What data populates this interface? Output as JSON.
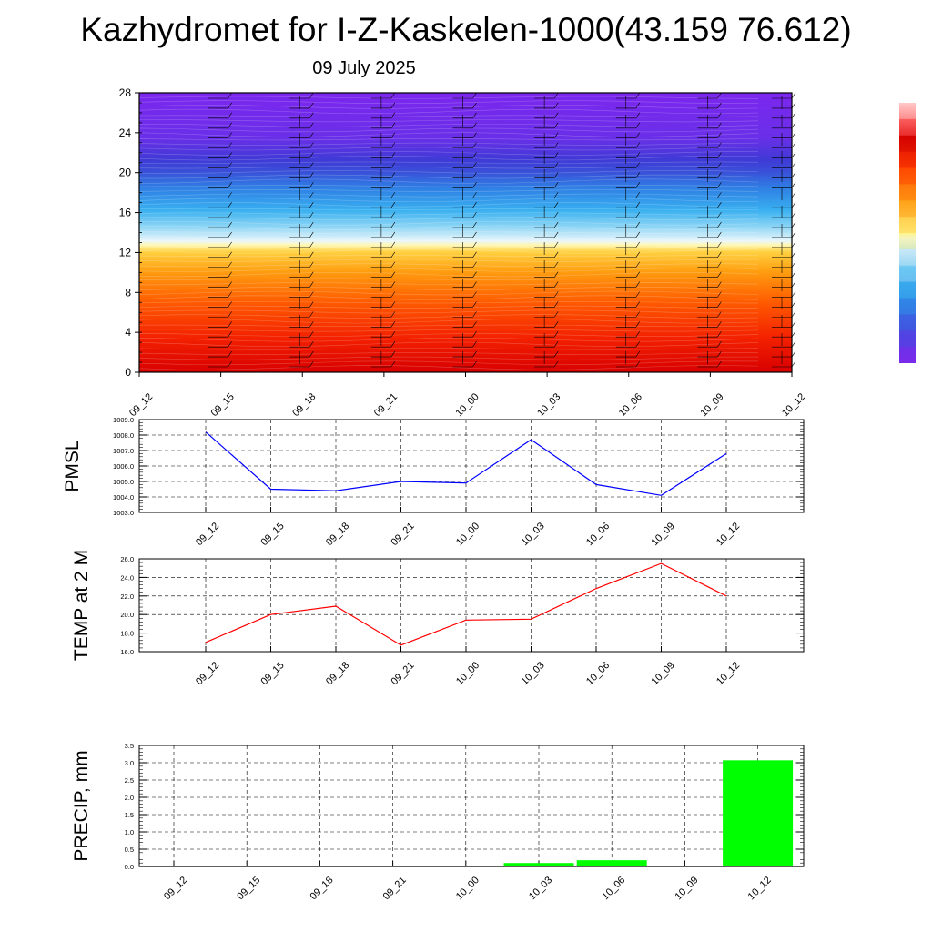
{
  "header": {
    "title": "Kazhydromet for I-Z-Kaskelen-1000(43.159 76.612)",
    "date": "09 July 2025"
  },
  "time_labels": [
    "09_12",
    "09_15",
    "09_18",
    "09_21",
    "10_00",
    "10_03",
    "10_06",
    "10_09",
    "10_12"
  ],
  "colors": {
    "pmsl_line": "#0000ff",
    "temp_line": "#ff0000",
    "precip_bar": "#00ff00",
    "grid": "#000000"
  },
  "chart_data": [
    {
      "id": "cross-section",
      "type": "heatmap",
      "y_ticks": [
        "0",
        "4",
        "8",
        "12",
        "16",
        "20",
        "24",
        "28"
      ],
      "ylim": [
        0,
        28
      ],
      "x": [
        "09_12",
        "09_15",
        "09_18",
        "09_21",
        "10_00",
        "10_03",
        "10_06",
        "10_09",
        "10_12"
      ],
      "overlay": "wind barbs",
      "colorbar": [
        "#7b2aeb",
        "#5a3fe6",
        "#3b5be0",
        "#2f87e6",
        "#3cb4f0",
        "#9ad9f5",
        "#e8f4f8",
        "#fff48a",
        "#ffd24a",
        "#ffa41a",
        "#ff7a0a",
        "#ff4a00",
        "#f01a00",
        "#d40000",
        "#ff6060",
        "#ffc0c0"
      ]
    },
    {
      "id": "pmsl",
      "type": "line",
      "ylabel": "PMSL",
      "ylim": [
        1003.0,
        1009.0
      ],
      "y_ticks": [
        "1003.0",
        "1004.0",
        "1005.0",
        "1006.0",
        "1007.0",
        "1008.0",
        "1009.0"
      ],
      "x": [
        "09_12",
        "09_15",
        "09_18",
        "09_21",
        "10_00",
        "10_03",
        "10_06",
        "10_09",
        "10_12"
      ],
      "values": [
        1008.2,
        1004.5,
        1004.4,
        1005.0,
        1004.9,
        1007.7,
        1004.8,
        1004.1,
        1006.8
      ]
    },
    {
      "id": "temp",
      "type": "line",
      "ylabel": "TEMP at 2 M",
      "ylim": [
        16.0,
        26.0
      ],
      "y_ticks": [
        "16.0",
        "18.0",
        "20.0",
        "22.0",
        "24.0",
        "26.0"
      ],
      "x": [
        "09_12",
        "09_15",
        "09_18",
        "09_21",
        "10_00",
        "10_03",
        "10_06",
        "10_09",
        "10_12"
      ],
      "values": [
        17.0,
        20.0,
        20.9,
        16.7,
        19.4,
        19.5,
        22.8,
        25.5,
        22.0
      ]
    },
    {
      "id": "precip",
      "type": "bar",
      "ylabel": "PRECIP, mm",
      "ylim": [
        0,
        3.5
      ],
      "y_ticks": [
        "0.0",
        "0.5",
        "1.0",
        "1.5",
        "2.0",
        "2.5",
        "3.0",
        "3.5"
      ],
      "categories": [
        "09_12",
        "09_15",
        "09_18",
        "09_21",
        "10_00",
        "10_03",
        "10_06",
        "10_09",
        "10_12"
      ],
      "values": [
        0,
        0,
        0,
        0,
        0,
        0.1,
        0.18,
        0,
        3.07
      ]
    }
  ]
}
